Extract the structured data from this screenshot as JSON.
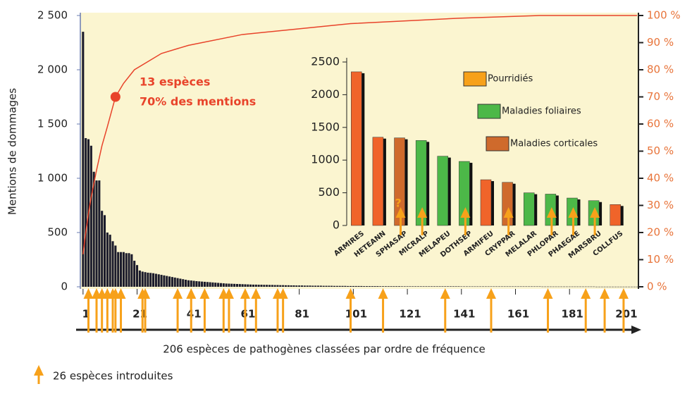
{
  "chart_data": [
    {
      "type": "pareto",
      "y_label": "Mentions de dommages",
      "x_label": "206 espèces de pathogènes classées par ordre de fréquence",
      "values": [
        2350,
        1370,
        1360,
        1300,
        1060,
        980,
        980,
        700,
        660,
        500,
        480,
        420,
        380,
        320,
        320,
        320,
        310,
        310,
        300,
        240,
        200,
        150,
        140,
        135,
        130,
        128,
        125,
        120,
        115,
        110,
        105,
        100,
        95,
        90,
        85,
        80,
        75,
        70,
        65,
        60,
        58,
        55,
        52,
        50,
        48,
        46,
        44,
        42,
        40,
        38,
        36,
        34,
        32,
        30,
        29,
        28,
        27,
        26,
        25,
        24,
        23,
        22,
        21,
        20,
        20,
        19,
        19,
        18,
        18,
        17,
        17,
        16,
        16,
        15,
        15,
        14,
        14,
        13,
        13,
        12,
        12,
        12,
        11,
        11,
        11,
        10,
        10,
        10,
        10,
        9,
        9,
        9,
        9,
        8,
        8,
        8,
        8,
        8,
        7,
        7,
        7,
        7,
        7,
        7,
        6,
        6,
        6,
        6,
        6,
        6,
        5,
        5,
        5,
        5,
        5,
        5,
        5,
        5,
        4,
        4,
        4,
        4,
        4,
        4,
        4,
        4,
        4,
        4,
        4,
        4,
        4,
        4,
        4,
        4,
        4,
        4,
        4,
        4,
        4,
        4,
        3,
        3,
        3,
        3,
        3,
        3,
        3,
        3,
        3,
        3,
        3,
        3,
        3,
        3,
        3,
        3,
        3,
        3,
        3,
        3,
        3,
        3,
        3,
        3,
        3,
        3,
        3,
        3,
        3,
        3,
        2,
        2,
        2,
        2,
        2,
        2,
        2,
        2,
        2,
        2,
        2,
        2,
        2,
        2,
        2,
        2,
        2,
        2,
        2,
        2,
        1,
        1,
        1,
        1,
        1,
        1,
        1,
        1,
        1,
        1,
        1,
        1,
        1,
        1,
        1,
        1
      ],
      "color": "#1b1b2b",
      "xlim": [
        0,
        206.5
      ],
      "xticks": [
        1,
        21,
        41,
        61,
        81,
        101,
        121,
        141,
        161,
        181,
        201
      ],
      "ylim": [
        0,
        2500
      ],
      "yticks": [
        0,
        500,
        {
          "value": 1000,
          "label": "1 000"
        },
        {
          "value": 1500,
          "label": "1 500"
        },
        {
          "value": 2000,
          "label": "2 000"
        },
        {
          "value": 2500,
          "label": "2 500"
        }
      ],
      "y2lim": [
        0,
        100
      ],
      "y2ticks": [
        {
          "value": 0,
          "label": "0 %"
        },
        {
          "value": 10,
          "label": "10 %"
        },
        {
          "value": 20,
          "label": "20 %"
        },
        {
          "value": 30,
          "label": "30 %"
        },
        {
          "value": 40,
          "label": "40 %"
        },
        {
          "value": 50,
          "label": "50 %"
        },
        {
          "value": 60,
          "label": "60 %"
        },
        {
          "value": 70,
          "label": "70 %"
        },
        {
          "value": 80,
          "label": "80 %"
        },
        {
          "value": 90,
          "label": "90 %"
        },
        {
          "value": 100,
          "label": "100 %"
        }
      ],
      "cumulative": {
        "axis": "y2",
        "color": "#e8432a",
        "x": [
          1,
          2,
          3,
          4,
          6,
          8,
          10,
          13,
          16,
          20,
          30,
          40,
          60,
          80,
          100,
          140,
          170,
          206
        ],
        "values": [
          12,
          20,
          27,
          33,
          43,
          52,
          59,
          70,
          75,
          80,
          86,
          89,
          93,
          95,
          97,
          99,
          100,
          100
        ]
      },
      "annotation": {
        "text": [
          "13 espèces",
          "70% des mentions"
        ],
        "x": 13,
        "y": 70
      },
      "introduced": {
        "label": "26 espèces introduites",
        "color": "#f7a11a",
        "x": [
          3,
          6,
          8,
          10,
          12,
          13,
          15,
          23,
          24,
          36,
          41,
          46,
          53,
          55,
          61,
          65,
          73,
          75,
          100,
          112,
          135,
          152,
          173,
          187,
          194,
          201
        ]
      }
    },
    {
      "type": "bar",
      "categories": [
        "ARMIRES",
        "HETEANN",
        "SPHASAP",
        "MICRALP",
        "MELAPEU",
        "DOTHSEP",
        "ARMIFEU",
        "CRYPPAR",
        "MELALAR",
        "PHLOPAR",
        "PHAEGAE",
        "MARSBRU",
        "COLLFUS"
      ],
      "series": [
        {
          "name": "Pourridiés",
          "color": "#f0642a",
          "values": [
            2350,
            1350,
            null,
            null,
            null,
            null,
            700,
            null,
            null,
            null,
            null,
            null,
            320
          ]
        },
        {
          "name": "Maladies foliaires",
          "color": "#4cb848",
          "values": [
            null,
            null,
            null,
            1300,
            1060,
            980,
            null,
            null,
            500,
            480,
            420,
            380,
            null
          ]
        },
        {
          "name": "Maladies corticales",
          "color": "#cf6a2c",
          "values": [
            null,
            null,
            1340,
            null,
            null,
            null,
            null,
            660,
            null,
            null,
            null,
            null,
            null
          ]
        }
      ],
      "legend_colors": [
        "#f7a11a",
        "#4cb848",
        "#cf6a2c"
      ],
      "ylim": [
        0,
        2500
      ],
      "yticks": [
        0,
        500,
        1000,
        1500,
        2000,
        2500
      ],
      "introduced": [
        false,
        false,
        true,
        true,
        false,
        true,
        false,
        true,
        false,
        true,
        true,
        true,
        false
      ],
      "annotation": "?"
    }
  ]
}
